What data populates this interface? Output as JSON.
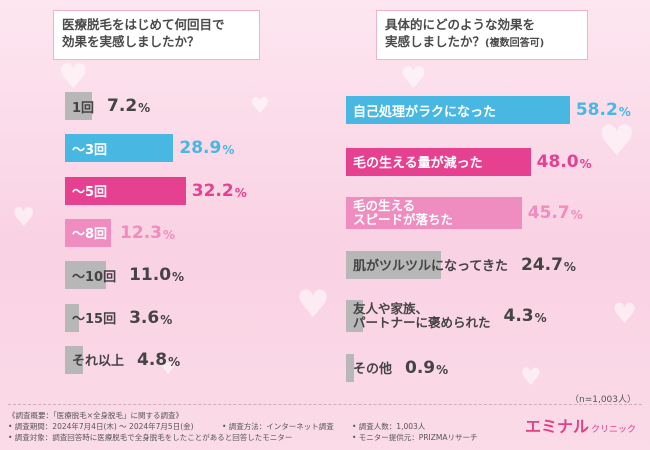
{
  "colors": {
    "gray": "#b7b7b7",
    "blue": "#48b7e2",
    "pink_dark": "#e64090",
    "pink_light": "#ef8cc0",
    "text_dark": "#444444"
  },
  "left_question": {
    "line1": "医療脱毛をはじめて何回目で",
    "line2": "効果を実感しましたか？"
  },
  "right_question": {
    "line1": "具体的にどのような効果を",
    "line2": "実感しましたか？",
    "note": "(複数回答可)"
  },
  "chart_data": [
    {
      "type": "bar",
      "orientation": "horizontal",
      "categories": [
        "1回",
        "～3回",
        "～5回",
        "～8回",
        "～10回",
        "～15回",
        "それ以上"
      ],
      "values": [
        7.2,
        28.9,
        32.2,
        12.3,
        11.0,
        3.6,
        4.8
      ],
      "value_labels": [
        "7.2",
        "28.9",
        "32.2",
        "12.3",
        "11.0",
        "3.6",
        "4.8"
      ],
      "unit": "%",
      "bar_colors": [
        "gray",
        "blue",
        "pink_dark",
        "pink_light",
        "gray",
        "gray",
        "gray"
      ],
      "xlim": [
        0,
        40
      ]
    },
    {
      "type": "bar",
      "orientation": "horizontal",
      "categories": [
        [
          "自己処理がラクになった"
        ],
        [
          "毛の生える量が減った"
        ],
        [
          "毛の生える",
          "スピードが落ちた"
        ],
        [
          "肌がツルツルになってきた"
        ],
        [
          "友人や家族、",
          "パートナーに褒められた"
        ],
        [
          "その他"
        ]
      ],
      "values": [
        58.2,
        48.0,
        45.7,
        24.7,
        4.3,
        0.9
      ],
      "value_labels": [
        "58.2",
        "48.0",
        "45.7",
        "24.7",
        "4.3",
        "0.9"
      ],
      "unit": "%",
      "bar_colors": [
        "blue",
        "pink_dark",
        "pink_light",
        "gray",
        "gray",
        "gray"
      ],
      "xlim": [
        0,
        65
      ]
    }
  ],
  "n_note": "（n=1,003人）",
  "footer": {
    "line1a": "《調査概要：「医療脱毛×全身脱毛」に関する調査》",
    "line2a": "• 調査期間：2024年7月4日(木) ～ 2024年7月5日(金)",
    "line2b": "• 調査方法：インターネット調査",
    "line2c": "• 調査人数：1,003人",
    "line3a": "• 調査対象：調査回答時に医療脱毛で全身脱毛をしたことがあると回答したモニター",
    "line3b": "• モニター提供元：PRIZMAリサーチ"
  },
  "logo": {
    "main": "エミナル",
    "sub": "クリニック"
  }
}
